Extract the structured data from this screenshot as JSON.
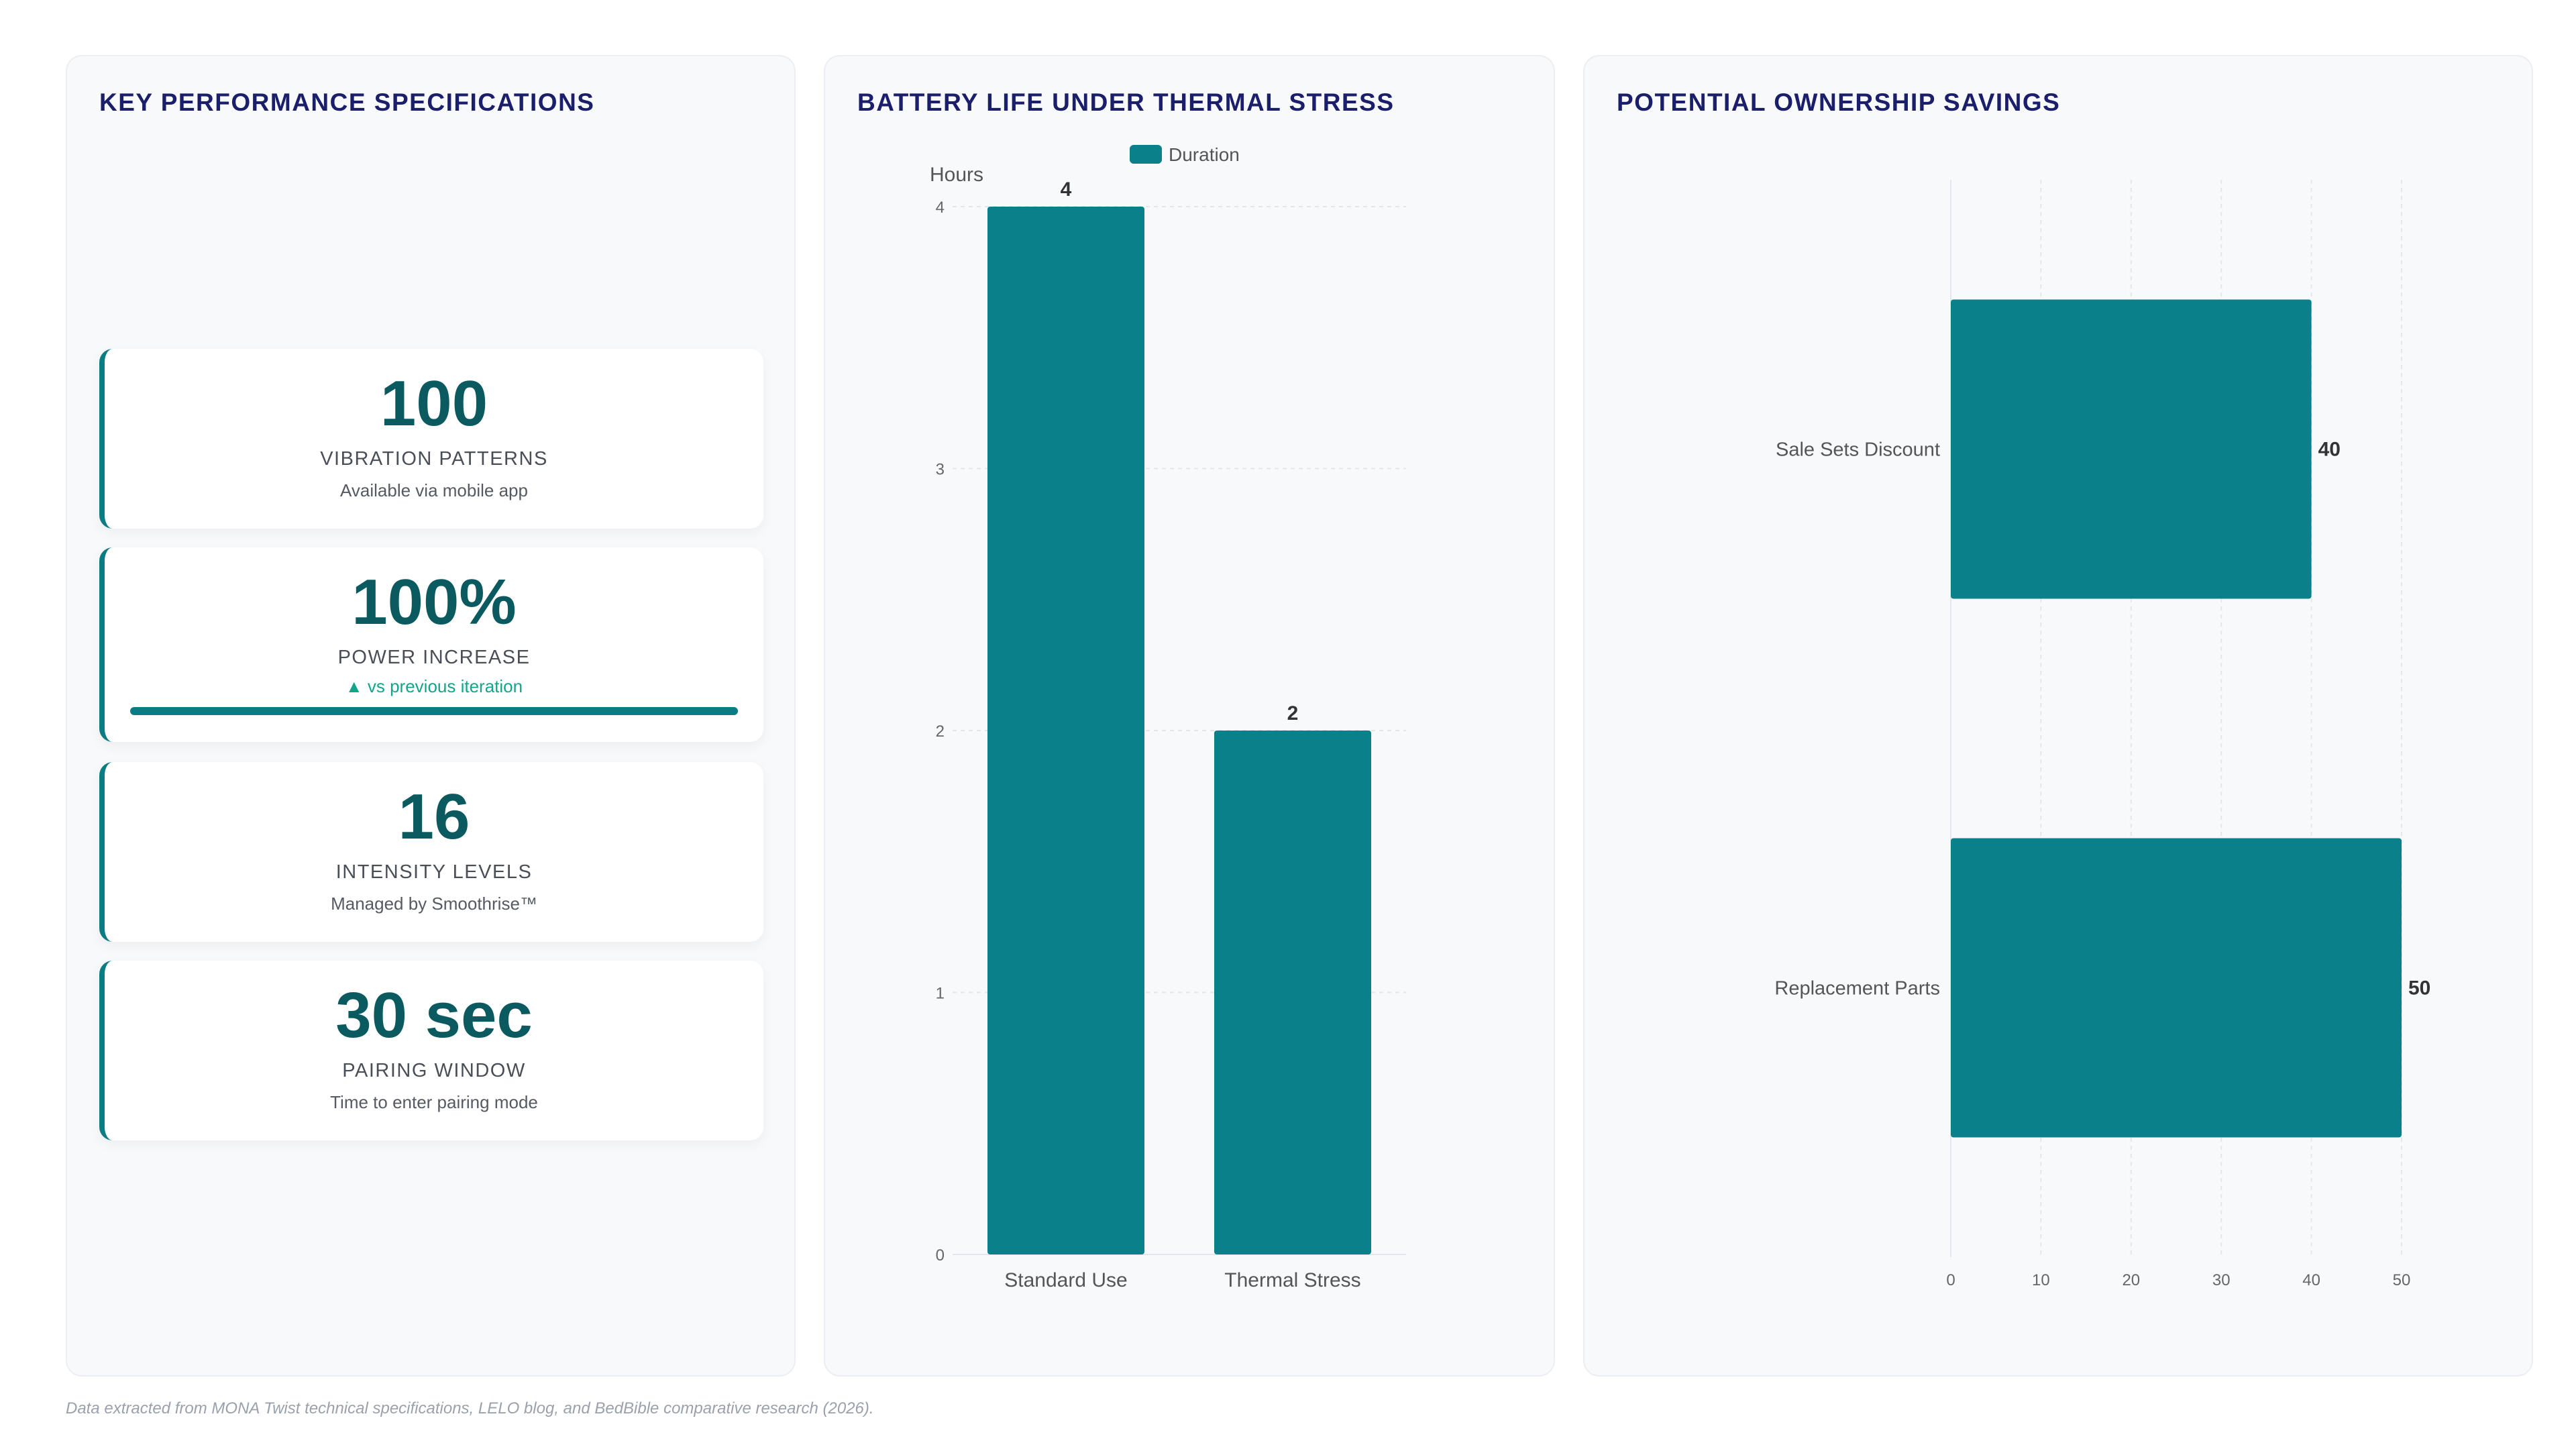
{
  "kpi_panel": {
    "title": "KEY PERFORMANCE SPECIFICATIONS",
    "cards": [
      {
        "value": "100",
        "label": "VIBRATION PATTERNS",
        "sub": "Available via mobile app"
      },
      {
        "value": "100%",
        "label": "POWER INCREASE",
        "sub": "▲ vs previous iteration",
        "progress": 1.0
      },
      {
        "value": "16",
        "label": "INTENSITY LEVELS",
        "sub": "Managed by Smoothrise™"
      },
      {
        "value": "30 sec",
        "label": "PAIRING WINDOW",
        "sub": "Time to enter pairing mode"
      }
    ]
  },
  "battery_panel": {
    "title": "BATTERY LIFE UNDER THERMAL STRESS"
  },
  "savings_panel": {
    "title": "POTENTIAL OWNERSHIP SAVINGS"
  },
  "colors": {
    "bar": "#0a808a",
    "accent": "#0c7c84",
    "title": "#1b1f6b",
    "trend": "#12a58a"
  },
  "chart_data": [
    {
      "type": "bar",
      "orientation": "vertical",
      "categories": [
        "Standard Use",
        "Thermal Stress"
      ],
      "series": [
        {
          "name": "Duration",
          "values": [
            4,
            2
          ]
        }
      ],
      "ylabel": "Hours",
      "ylim": [
        0,
        4
      ],
      "yticks": [
        "0",
        "1",
        "2",
        "3",
        "4"
      ],
      "data_labels": [
        "4",
        "2"
      ],
      "legend": "top-center",
      "grid": true
    },
    {
      "type": "bar",
      "orientation": "horizontal",
      "categories": [
        "Sale Sets Discount",
        "Replacement Parts"
      ],
      "values": [
        40,
        50
      ],
      "xlim": [
        0,
        50
      ],
      "xticks": [
        "0",
        "10",
        "20",
        "30",
        "40",
        "50"
      ],
      "data_labels": [
        "40",
        "50"
      ],
      "legend": "none",
      "grid": true
    }
  ],
  "footnote": "Data extracted from MONA Twist technical specifications, LELO blog, and BedBible comparative research (2026)."
}
